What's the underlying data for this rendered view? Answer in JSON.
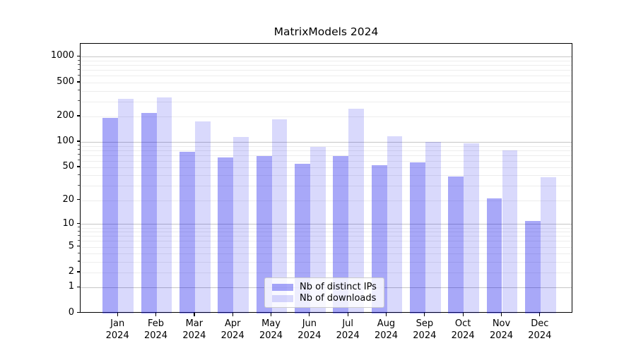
{
  "chart_data": {
    "type": "bar",
    "title": "MatrixModels 2024",
    "year": "2024",
    "categories": [
      "Jan",
      "Feb",
      "Mar",
      "Apr",
      "May",
      "Jun",
      "Jul",
      "Aug",
      "Sep",
      "Oct",
      "Nov",
      "Dec"
    ],
    "series": [
      {
        "name": "Nb of distinct IPs",
        "key": "ips",
        "color": "rgba(0,0,235,0.34)",
        "values": [
          192,
          218,
          77,
          65,
          68,
          55,
          68,
          53,
          57,
          39,
          21,
          11
        ]
      },
      {
        "name": "Nb of downloads",
        "key": "downloads",
        "color": "rgba(0,0,235,0.15)",
        "values": [
          322,
          333,
          173,
          115,
          186,
          88,
          248,
          116,
          100,
          96,
          80,
          38
        ]
      }
    ],
    "xlabel": "",
    "ylabel": "",
    "yscale": "log1p",
    "ylim": [
      0,
      1420
    ],
    "yticks": [
      0,
      1,
      2,
      5,
      10,
      20,
      50,
      100,
      200,
      500,
      1000
    ],
    "major_gridlines": [
      1,
      10,
      100,
      1000
    ],
    "grid": true,
    "legend_position": "lower-center-inside"
  }
}
